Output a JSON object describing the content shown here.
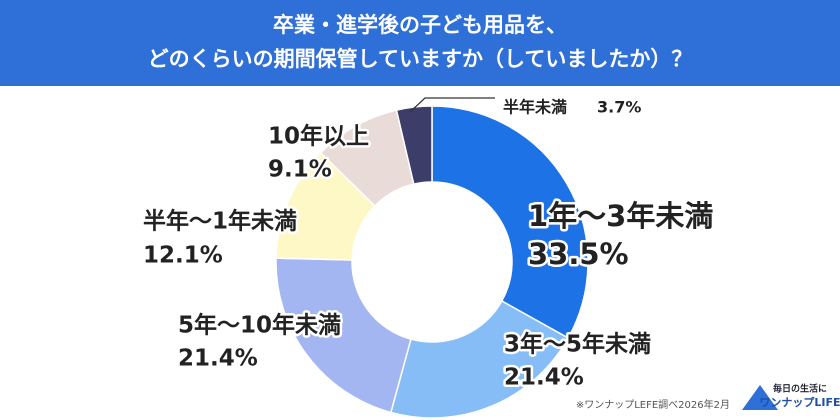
{
  "chart_data": {
    "type": "donut",
    "title": [
      "卒業・進学後の子ども用品を、",
      "どのくらいの期間保管していますか（していましたか）？"
    ],
    "categories": [
      "1年～3年未満",
      "3年～5年未満",
      "5年～10年未満",
      "半年～1年未満",
      "10年以上",
      "半年未満"
    ],
    "values": [
      33.5,
      21.4,
      21.4,
      12.1,
      9.1,
      3.7
    ],
    "value_labels": [
      "33.5%",
      "21.4%",
      "21.4%",
      "12.1%",
      "9.1%",
      "3.7%"
    ],
    "colors": [
      "#1d72e6",
      "#86bdf7",
      "#a4b6f2",
      "#fdf8c6",
      "#e9dbd8",
      "#3c3d68"
    ],
    "source": "※ワンナップLEFE調べ2026年2月",
    "logo": [
      "毎日の生活に",
      "ワンナップLIFE"
    ]
  }
}
